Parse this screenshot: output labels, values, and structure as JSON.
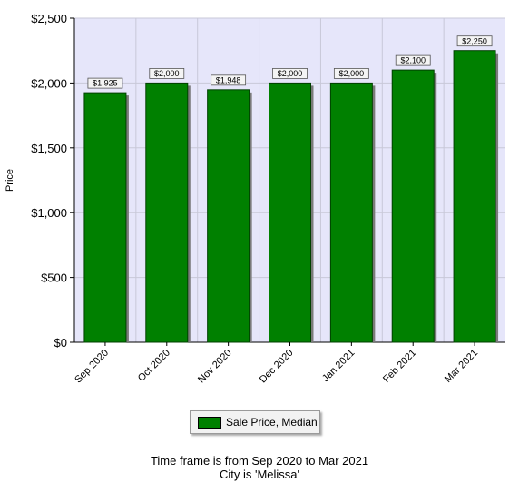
{
  "chart_data": {
    "type": "bar",
    "categories": [
      "Sep 2020",
      "Oct 2020",
      "Nov 2020",
      "Dec 2020",
      "Jan 2021",
      "Feb 2021",
      "Mar 2021"
    ],
    "series": [
      {
        "name": "Sale Price, Median",
        "values": [
          1925,
          2000,
          1948,
          2000,
          2000,
          2100,
          2250
        ],
        "data_labels": [
          "$1,925",
          "$2,000",
          "$1,948",
          "$2,000",
          "$2,000",
          "$2,100",
          "$2,250"
        ],
        "color": "#008000"
      }
    ],
    "title": "",
    "xlabel": "",
    "ylabel": "Price",
    "ylim": [
      0,
      2500
    ],
    "yticks": [
      0,
      500,
      1000,
      1500,
      2000,
      2500
    ],
    "ytick_labels": [
      "$0",
      "$500",
      "$1,000",
      "$1,500",
      "$2,000",
      "$2,500"
    ],
    "grid": true,
    "plot_background": "#e6e6fa",
    "legend_position": "bottom-center"
  },
  "footer": {
    "line1": "Time frame is from Sep 2020 to Mar 2021",
    "line2": "City is 'Melissa'"
  }
}
